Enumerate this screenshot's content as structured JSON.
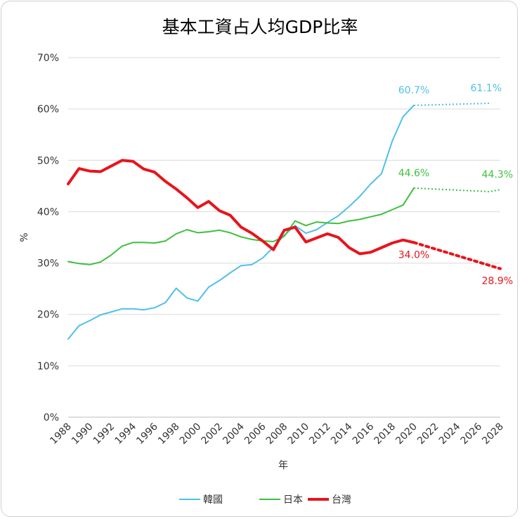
{
  "chart_data": {
    "type": "line",
    "title": "基本工資占人均GDP比率",
    "xlabel": "年",
    "ylabel": "%",
    "ylim": [
      0,
      70
    ],
    "yticks": [
      "0%",
      "10%",
      "20%",
      "30%",
      "40%",
      "50%",
      "60%",
      "70%"
    ],
    "x_range": [
      1988,
      2028
    ],
    "xticks": [
      "1988",
      "1990",
      "1992",
      "1994",
      "1996",
      "1998",
      "2000",
      "2002",
      "2004",
      "2006",
      "2008",
      "2010",
      "2012",
      "2014",
      "2016",
      "2018",
      "2020",
      "2022",
      "2024",
      "2026",
      "2028"
    ],
    "grid": "horizontal",
    "legend_position": "bottom",
    "series": [
      {
        "name": "韓國",
        "color": "#4fc0e8",
        "x": [
          1988,
          1989,
          1990,
          1991,
          1992,
          1993,
          1994,
          1995,
          1996,
          1997,
          1998,
          1999,
          2000,
          2001,
          2002,
          2003,
          2004,
          2005,
          2006,
          2007,
          2008,
          2009,
          2010,
          2011,
          2012,
          2013,
          2014,
          2015,
          2016,
          2017,
          2018,
          2019,
          2020
        ],
        "values": [
          15.2,
          17.8,
          18.8,
          19.9,
          20.5,
          21.1,
          21.1,
          20.9,
          21.3,
          22.3,
          25.1,
          23.2,
          22.6,
          25.3,
          26.6,
          28.1,
          29.5,
          29.7,
          31.0,
          33.1,
          35.4,
          37.3,
          35.8,
          36.5,
          37.9,
          39.2,
          41.0,
          43.0,
          45.4,
          47.4,
          53.8,
          58.5,
          60.7
        ],
        "projection": {
          "x": [
            2020,
            2027
          ],
          "values": [
            60.7,
            61.1
          ]
        },
        "labels": [
          {
            "x": 2020,
            "value": 60.7,
            "text": "60.7%"
          },
          {
            "x": 2027,
            "value": 61.1,
            "text": "61.1%"
          }
        ]
      },
      {
        "name": "日本",
        "color": "#3fbf3f",
        "x": [
          1988,
          1989,
          1990,
          1991,
          1992,
          1993,
          1994,
          1995,
          1996,
          1997,
          1998,
          1999,
          2000,
          2001,
          2002,
          2003,
          2004,
          2005,
          2006,
          2007,
          2008,
          2009,
          2010,
          2011,
          2012,
          2013,
          2014,
          2015,
          2016,
          2017,
          2018,
          2019,
          2020
        ],
        "values": [
          30.3,
          29.9,
          29.7,
          30.2,
          31.6,
          33.3,
          34.0,
          34.0,
          33.9,
          34.3,
          35.7,
          36.5,
          35.9,
          36.1,
          36.4,
          35.9,
          35.1,
          34.6,
          34.3,
          34.2,
          35.2,
          38.2,
          37.3,
          38.0,
          37.8,
          37.7,
          38.2,
          38.5,
          39.0,
          39.5,
          40.4,
          41.3,
          44.6
        ],
        "projection": {
          "x": [
            2020,
            2027,
            2028
          ],
          "values": [
            44.6,
            43.9,
            44.3
          ]
        },
        "labels": [
          {
            "x": 2020,
            "value": 44.6,
            "text": "44.6%"
          },
          {
            "x": 2028,
            "value": 44.3,
            "text": "44.3%"
          }
        ]
      },
      {
        "name": "台灣",
        "color": "#e8141c",
        "x": [
          1988,
          1989,
          1990,
          1991,
          1992,
          1993,
          1994,
          1995,
          1996,
          1997,
          1998,
          1999,
          2000,
          2001,
          2002,
          2003,
          2004,
          2005,
          2006,
          2007,
          2008,
          2009,
          2010,
          2011,
          2012,
          2013,
          2014,
          2015,
          2016,
          2017,
          2018,
          2019,
          2020
        ],
        "values": [
          45.4,
          48.4,
          47.9,
          47.8,
          48.9,
          50.0,
          49.8,
          48.3,
          47.7,
          45.9,
          44.4,
          42.7,
          40.8,
          42.0,
          40.2,
          39.3,
          37.0,
          35.8,
          34.3,
          32.6,
          36.4,
          37.0,
          34.1,
          34.9,
          35.7,
          35.0,
          33.0,
          31.8,
          32.1,
          33.0,
          33.9,
          34.5,
          34.0
        ],
        "projection": {
          "x": [
            2020,
            2028
          ],
          "values": [
            34.0,
            28.9
          ]
        },
        "labels": [
          {
            "x": 2020,
            "value": 34.0,
            "text": "34.0%"
          },
          {
            "x": 2028,
            "value": 28.9,
            "text": "28.9%"
          }
        ]
      }
    ]
  }
}
